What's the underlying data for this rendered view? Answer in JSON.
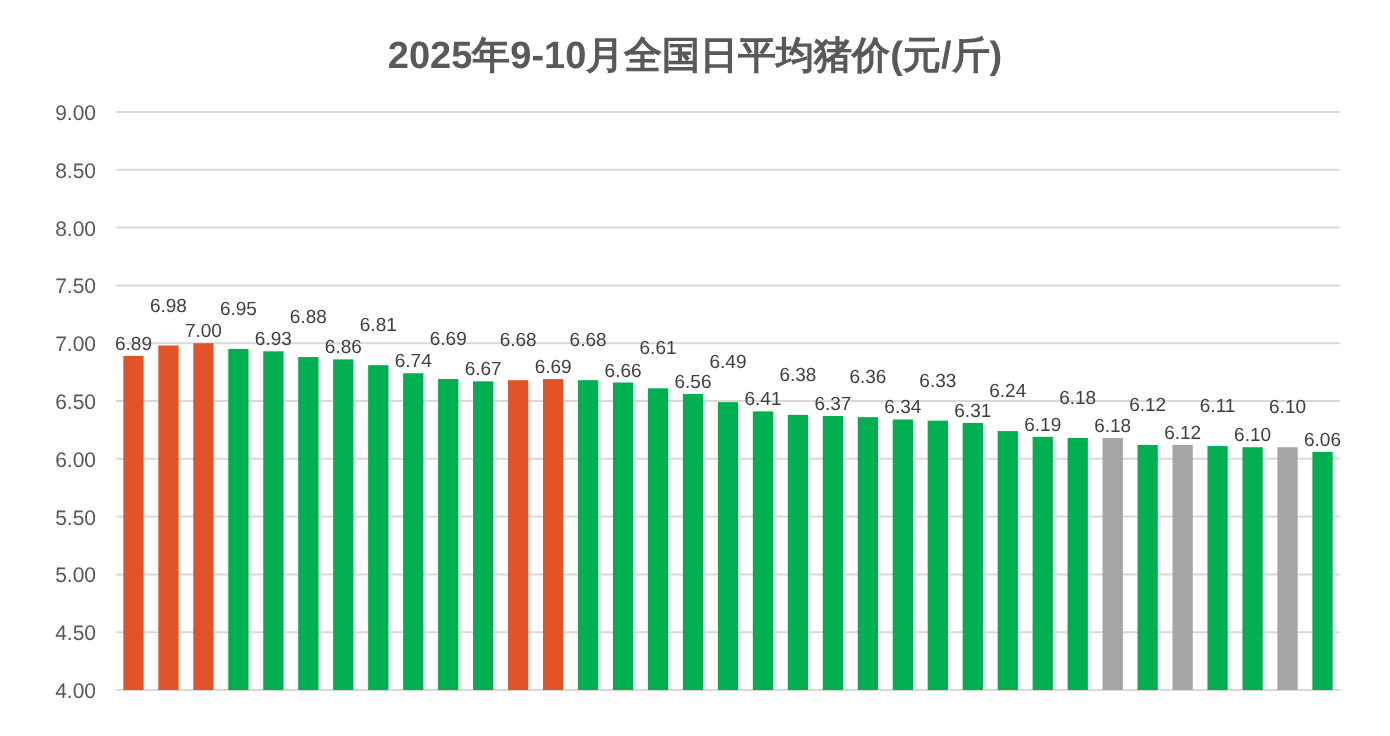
{
  "chart_data": {
    "type": "bar",
    "title": "2025年9-10月全国日平均猪价(元/斤)",
    "categories": [
      null,
      null,
      null,
      null,
      null,
      null,
      null,
      null,
      null,
      null,
      null,
      null,
      null,
      null,
      null,
      null,
      null,
      null,
      null,
      null,
      null,
      null,
      null,
      null,
      null,
      null,
      null,
      null,
      null,
      null,
      null,
      null,
      null,
      null,
      null
    ],
    "values": [
      6.89,
      6.98,
      7.0,
      6.95,
      6.93,
      6.88,
      6.86,
      6.81,
      6.74,
      6.69,
      6.67,
      6.68,
      6.69,
      6.68,
      6.66,
      6.61,
      6.56,
      6.49,
      6.41,
      6.38,
      6.37,
      6.36,
      6.34,
      6.33,
      6.31,
      6.24,
      6.19,
      6.18,
      6.18,
      6.12,
      6.12,
      6.11,
      6.1,
      6.1,
      6.06
    ],
    "value_labels": [
      "6.89",
      "6.98",
      "7.00",
      "6.95",
      "6.93",
      "6.88",
      "6.86",
      "6.81",
      "6.74",
      "6.69",
      "6.67",
      "6.68",
      "6.69",
      "6.68",
      "6.66",
      "6.61",
      "6.56",
      "6.49",
      "6.41",
      "6.38",
      "6.37",
      "6.36",
      "6.34",
      "6.33",
      "6.31",
      "6.24",
      "6.19",
      "6.18",
      "6.18",
      "6.12",
      "6.12",
      "6.11",
      "6.10",
      "6.10",
      "6.06"
    ],
    "colors": [
      "#e3532a",
      "#e3532a",
      "#e3532a",
      "#00b050",
      "#00b050",
      "#00b050",
      "#00b050",
      "#00b050",
      "#00b050",
      "#00b050",
      "#00b050",
      "#e3532a",
      "#e3532a",
      "#00b050",
      "#00b050",
      "#00b050",
      "#00b050",
      "#00b050",
      "#00b050",
      "#00b050",
      "#00b050",
      "#00b050",
      "#00b050",
      "#00b050",
      "#00b050",
      "#00b050",
      "#00b050",
      "#00b050",
      "#a5a5a5",
      "#00b050",
      "#a5a5a5",
      "#00b050",
      "#00b050",
      "#a5a5a5",
      "#00b050"
    ],
    "ylim": [
      4,
      9
    ],
    "yticks": [
      {
        "value": 4,
        "label": "4.00"
      },
      {
        "value": 4.5,
        "label": "4.50"
      },
      {
        "value": 5,
        "label": "5.00"
      },
      {
        "value": 5.5,
        "label": "5.50"
      },
      {
        "value": 6,
        "label": "6.00"
      },
      {
        "value": 6.5,
        "label": "6.50"
      },
      {
        "value": 7,
        "label": "7.00"
      },
      {
        "value": 7.5,
        "label": "7.50"
      },
      {
        "value": 8,
        "label": "8.00"
      },
      {
        "value": 8.5,
        "label": "8.50"
      },
      {
        "value": 9,
        "label": "9.00"
      }
    ],
    "grid": "y"
  }
}
